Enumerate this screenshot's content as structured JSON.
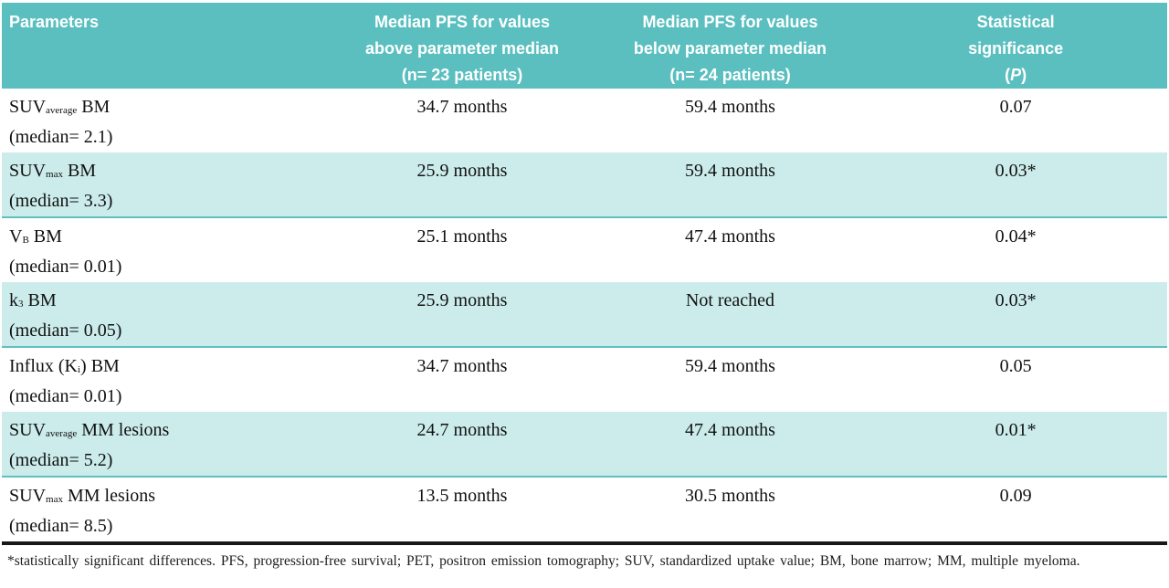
{
  "colors": {
    "header_bg": "#5bbfc0",
    "stripe_bg": "#cbeceb",
    "stripe_border": "#5fc0c0"
  },
  "table": {
    "header": {
      "parameters": "Parameters",
      "above_lines": [
        "Median PFS for values",
        "above parameter median",
        "(n= 23 patients)"
      ],
      "below_lines": [
        "Median PFS for values",
        "below parameter median",
        "(n= 24 patients)"
      ],
      "sig_line1": "Statistical",
      "sig_line2": "significance",
      "sig_open": "(",
      "sig_italic": "P",
      "sig_close": ")"
    },
    "rows": [
      {
        "pre": "SUV",
        "sub": "average",
        "post": " BM",
        "median": "(median= 2.1)",
        "above": "34.7 months",
        "below": "59.4 months",
        "p": "0.07"
      },
      {
        "pre": "SUV",
        "sub": "max",
        "post": " BM",
        "median": "(median= 3.3)",
        "above": "25.9 months",
        "below": "59.4 months",
        "p": "0.03*"
      },
      {
        "pre": "V",
        "sub": "B",
        "post": " BM",
        "median": "(median= 0.01)",
        "above": "25.1 months",
        "below": "47.4 months",
        "p": "0.04*"
      },
      {
        "pre": "k",
        "sub": "3",
        "post": " BM",
        "median": "(median= 0.05)",
        "above": "25.9 months",
        "below": "Not reached",
        "p": "0.03*"
      },
      {
        "pre": "Influx (K",
        "sub": "i",
        "post": ") BM",
        "median": "(median= 0.01)",
        "above": "34.7 months",
        "below": "59.4 months",
        "p": "0.05"
      },
      {
        "pre": "SUV",
        "sub": "average",
        "post": " MM lesions",
        "median": "(median= 5.2)",
        "above": "24.7 months",
        "below": "47.4 months",
        "p": "0.01*"
      },
      {
        "pre": "SUV",
        "sub": "max",
        "post": " MM lesions",
        "median": "(median= 8.5)",
        "above": "13.5 months",
        "below": "30.5 months",
        "p": "0.09"
      }
    ]
  },
  "footnote": "*statistically significant differences. PFS, progression-free survival; PET, positron emission tomography; SUV, standardized uptake value; BM, bone marrow; MM, multiple myeloma."
}
